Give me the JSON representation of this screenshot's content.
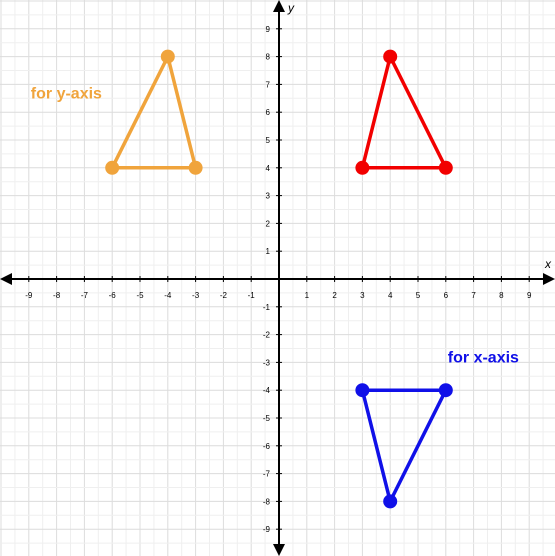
{
  "chart_data": {
    "type": "scatter",
    "xlabel": "x",
    "ylabel": "y",
    "xlim": [
      -10,
      10
    ],
    "ylim": [
      -10,
      10
    ],
    "x_ticks": [
      "-9",
      "-8",
      "-7",
      "-6",
      "-5",
      "-4",
      "-3",
      "-2",
      "-1",
      "1",
      "2",
      "3",
      "4",
      "5",
      "6",
      "7",
      "8",
      "9"
    ],
    "y_ticks": [
      "9",
      "8",
      "7",
      "6",
      "5",
      "4",
      "3",
      "2",
      "1",
      "-1",
      "-2",
      "-3",
      "-4",
      "-5",
      "-6",
      "-7",
      "-8",
      "-9"
    ],
    "grid": true,
    "series": [
      {
        "color": "#f0a43c",
        "points": [
          {
            "x": -6,
            "y": 4
          },
          {
            "x": -4,
            "y": 8
          },
          {
            "x": -3,
            "y": 4
          }
        ]
      },
      {
        "color": "#f20000",
        "points": [
          {
            "x": 3,
            "y": 4
          },
          {
            "x": 4,
            "y": 8
          },
          {
            "x": 6,
            "y": 4
          }
        ]
      },
      {
        "color": "#1010e8",
        "points": [
          {
            "x": 3,
            "y": -4
          },
          {
            "x": 4,
            "y": -8
          },
          {
            "x": 6,
            "y": -4
          }
        ]
      }
    ],
    "annotations": [
      {
        "text": "for y-axis",
        "x": -9,
        "y": 6.5,
        "color": "#f0a43c"
      },
      {
        "text": "for x-axis",
        "x": 6,
        "y": -3,
        "color": "#1010e8"
      }
    ]
  }
}
